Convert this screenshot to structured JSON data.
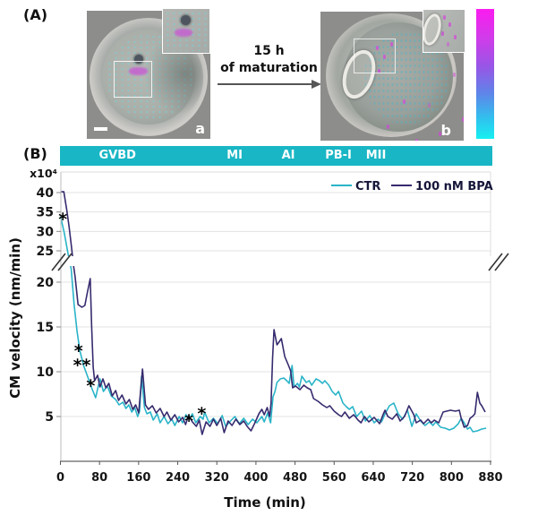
{
  "panel_a": {
    "label": "(A)",
    "photo_a_letter": "a",
    "photo_b_letter": "b",
    "arrow_line1": "15 h",
    "arrow_line2": "of maturation",
    "colorbar": {
      "top_color": "#fb1cf0",
      "bottom_color": "#16f0f1"
    }
  },
  "panel_b": {
    "label": "(B)",
    "phase_bar": {
      "color": "#19b6c5",
      "phases": [
        {
          "label": "GVBD",
          "left_pct": 13.3
        },
        {
          "label": "MI",
          "left_pct": 40.4
        },
        {
          "label": "AI",
          "left_pct": 52.8
        },
        {
          "label": "PB-I",
          "left_pct": 64.4
        },
        {
          "label": "MII",
          "left_pct": 73.1
        }
      ]
    },
    "y_scale_note": "x10⁴",
    "y_axis_title": "CM velocity (nm/min)",
    "x_axis_title": "Time (min)"
  },
  "chart_data": {
    "type": "line",
    "title": "",
    "xlabel": "Time (min)",
    "ylabel": "CM velocity (nm/min)",
    "y_units_multiplier": "x10⁴",
    "x_ticks": [
      0,
      80,
      160,
      240,
      320,
      400,
      480,
      560,
      640,
      720,
      800,
      880
    ],
    "y_ticks_upper": [
      25,
      30,
      35,
      40
    ],
    "y_ticks_lower": [
      5,
      10,
      15,
      20
    ],
    "y_axis_break_between": [
      22,
      24
    ],
    "grid": true,
    "legend_position": "top-right",
    "colors": {
      "grid": "#e3e3e3",
      "border": "#dcdcdc",
      "axis": "#8a8a8a",
      "tick_text": "#151515"
    },
    "series": [
      {
        "name": "CTR",
        "color": "#29b4c8",
        "points": [
          [
            0,
            34
          ],
          [
            8,
            29.5
          ],
          [
            16,
            24
          ],
          [
            22,
            21.5
          ],
          [
            28,
            17.5
          ],
          [
            34,
            14.5
          ],
          [
            40,
            12.3
          ],
          [
            48,
            10.6
          ],
          [
            56,
            9.4
          ],
          [
            64,
            8.2
          ],
          [
            72,
            7.1
          ],
          [
            81,
            9.2
          ],
          [
            88,
            7.8
          ],
          [
            96,
            8.4
          ],
          [
            104,
            7.3
          ],
          [
            113,
            6.9
          ],
          [
            120,
            6.3
          ],
          [
            128,
            6.6
          ],
          [
            134,
            5.9
          ],
          [
            140,
            6.3
          ],
          [
            146,
            5.5
          ],
          [
            152,
            6.0
          ],
          [
            158,
            5.0
          ],
          [
            162,
            5.6
          ],
          [
            166,
            9.5
          ],
          [
            172,
            6.0
          ],
          [
            177,
            5.3
          ],
          [
            184,
            5.5
          ],
          [
            190,
            4.6
          ],
          [
            198,
            5.3
          ],
          [
            204,
            4.3
          ],
          [
            212,
            5.0
          ],
          [
            220,
            4.2
          ],
          [
            228,
            4.7
          ],
          [
            234,
            4.0
          ],
          [
            243,
            5.0
          ],
          [
            250,
            4.3
          ],
          [
            257,
            5.2
          ],
          [
            263,
            4.7
          ],
          [
            270,
            5.3
          ],
          [
            277,
            4.3
          ],
          [
            286,
            5.0
          ],
          [
            292,
            4.7
          ],
          [
            295,
            5.5
          ],
          [
            304,
            4.3
          ],
          [
            313,
            4.8
          ],
          [
            322,
            4.2
          ],
          [
            331,
            5.1
          ],
          [
            338,
            3.9
          ],
          [
            348,
            4.5
          ],
          [
            357,
            5.0
          ],
          [
            366,
            4.2
          ],
          [
            375,
            4.8
          ],
          [
            384,
            4.1
          ],
          [
            393,
            4.7
          ],
          [
            402,
            4.3
          ],
          [
            412,
            5.0
          ],
          [
            417,
            4.4
          ],
          [
            424,
            5.4
          ],
          [
            430,
            4.3
          ],
          [
            435,
            7.2
          ],
          [
            439,
            7.8
          ],
          [
            443,
            8.8
          ],
          [
            450,
            9.2
          ],
          [
            457,
            9.3
          ],
          [
            463,
            9.0
          ],
          [
            468,
            8.7
          ],
          [
            474,
            10.7
          ],
          [
            478,
            8.3
          ],
          [
            485,
            8.7
          ],
          [
            489,
            8.3
          ],
          [
            494,
            9.5
          ],
          [
            503,
            8.8
          ],
          [
            509,
            9.0
          ],
          [
            514,
            8.5
          ],
          [
            523,
            9.2
          ],
          [
            530,
            9.0
          ],
          [
            536,
            8.7
          ],
          [
            541,
            9.0
          ],
          [
            549,
            8.5
          ],
          [
            556,
            7.8
          ],
          [
            563,
            7.4
          ],
          [
            569,
            7.8
          ],
          [
            578,
            6.5
          ],
          [
            585,
            6.1
          ],
          [
            591,
            5.8
          ],
          [
            598,
            6.1
          ],
          [
            606,
            5.0
          ],
          [
            616,
            5.6
          ],
          [
            624,
            4.5
          ],
          [
            633,
            5.1
          ],
          [
            642,
            4.3
          ],
          [
            650,
            4.7
          ],
          [
            657,
            4.4
          ],
          [
            664,
            5.3
          ],
          [
            673,
            6.2
          ],
          [
            682,
            6.5
          ],
          [
            691,
            5.3
          ],
          [
            700,
            4.7
          ],
          [
            710,
            5.7
          ],
          [
            719,
            3.9
          ],
          [
            728,
            5.3
          ],
          [
            737,
            4.5
          ],
          [
            746,
            4.0
          ],
          [
            755,
            4.4
          ],
          [
            762,
            4.0
          ],
          [
            768,
            4.4
          ],
          [
            778,
            3.8
          ],
          [
            787,
            3.7
          ],
          [
            796,
            3.5
          ],
          [
            805,
            3.7
          ],
          [
            814,
            4.2
          ],
          [
            820,
            4.8
          ],
          [
            826,
            4.3
          ],
          [
            833,
            3.6
          ],
          [
            838,
            3.8
          ],
          [
            844,
            3.3
          ],
          [
            853,
            3.4
          ],
          [
            862,
            3.6
          ],
          [
            871,
            3.7
          ]
        ]
      },
      {
        "name": "100 nM BPA",
        "color": "#372a6e",
        "points": [
          [
            0,
            40.2
          ],
          [
            7,
            40.2
          ],
          [
            13,
            35.5
          ],
          [
            18,
            31
          ],
          [
            23,
            25.5
          ],
          [
            27,
            21.8
          ],
          [
            30,
            20.6
          ],
          [
            36,
            17.5
          ],
          [
            44,
            17.2
          ],
          [
            50,
            17.4
          ],
          [
            55,
            18.8
          ],
          [
            61,
            20.4
          ],
          [
            64,
            15
          ],
          [
            67,
            10.5
          ],
          [
            70,
            9.0
          ],
          [
            76,
            9.6
          ],
          [
            81,
            8.3
          ],
          [
            87,
            9.2
          ],
          [
            93,
            8.2
          ],
          [
            99,
            8.7
          ],
          [
            106,
            7.3
          ],
          [
            113,
            7.9
          ],
          [
            119,
            6.8
          ],
          [
            126,
            7.4
          ],
          [
            134,
            6.4
          ],
          [
            141,
            6.9
          ],
          [
            148,
            5.8
          ],
          [
            154,
            6.3
          ],
          [
            160,
            5.4
          ],
          [
            168,
            10.3
          ],
          [
            174,
            6.3
          ],
          [
            180,
            5.8
          ],
          [
            188,
            6.2
          ],
          [
            196,
            5.4
          ],
          [
            204,
            5.9
          ],
          [
            212,
            5.0
          ],
          [
            218,
            5.5
          ],
          [
            226,
            4.6
          ],
          [
            234,
            5.2
          ],
          [
            242,
            4.4
          ],
          [
            250,
            4.9
          ],
          [
            256,
            4.1
          ],
          [
            262,
            5.1
          ],
          [
            270,
            4.4
          ],
          [
            278,
            3.9
          ],
          [
            284,
            4.6
          ],
          [
            290,
            3.0
          ],
          [
            298,
            4.4
          ],
          [
            306,
            3.9
          ],
          [
            313,
            4.7
          ],
          [
            320,
            4.0
          ],
          [
            328,
            4.8
          ],
          [
            335,
            3.2
          ],
          [
            343,
            4.5
          ],
          [
            351,
            4.0
          ],
          [
            359,
            4.7
          ],
          [
            367,
            4.1
          ],
          [
            375,
            4.5
          ],
          [
            382,
            3.9
          ],
          [
            390,
            3.4
          ],
          [
            398,
            4.3
          ],
          [
            406,
            5.3
          ],
          [
            412,
            5.8
          ],
          [
            417,
            5.2
          ],
          [
            423,
            6.0
          ],
          [
            428,
            5.0
          ],
          [
            431,
            6.5
          ],
          [
            434,
            11.5
          ],
          [
            437,
            14.7
          ],
          [
            443,
            13.0
          ],
          [
            447,
            13.3
          ],
          [
            452,
            13.7
          ],
          [
            459,
            11.7
          ],
          [
            466,
            10.8
          ],
          [
            471,
            10.1
          ],
          [
            475,
            8.2
          ],
          [
            481,
            8.4
          ],
          [
            490,
            8.0
          ],
          [
            498,
            8.5
          ],
          [
            505,
            8.2
          ],
          [
            512,
            8.0
          ],
          [
            518,
            7.0
          ],
          [
            527,
            6.7
          ],
          [
            536,
            6.3
          ],
          [
            545,
            6.0
          ],
          [
            551,
            6.2
          ],
          [
            560,
            5.6
          ],
          [
            569,
            5.2
          ],
          [
            575,
            5.0
          ],
          [
            582,
            5.5
          ],
          [
            591,
            4.8
          ],
          [
            600,
            5.2
          ],
          [
            609,
            4.6
          ],
          [
            615,
            4.3
          ],
          [
            622,
            5.0
          ],
          [
            631,
            4.4
          ],
          [
            642,
            4.9
          ],
          [
            653,
            4.2
          ],
          [
            660,
            5.2
          ],
          [
            664,
            5.7
          ],
          [
            670,
            5.0
          ],
          [
            679,
            4.7
          ],
          [
            688,
            5.3
          ],
          [
            695,
            4.5
          ],
          [
            704,
            5.0
          ],
          [
            713,
            6.2
          ],
          [
            723,
            5.2
          ],
          [
            728,
            4.3
          ],
          [
            737,
            4.6
          ],
          [
            743,
            4.2
          ],
          [
            752,
            4.7
          ],
          [
            759,
            4.3
          ],
          [
            765,
            4.6
          ],
          [
            774,
            4.3
          ],
          [
            783,
            5.5
          ],
          [
            790,
            5.6
          ],
          [
            798,
            5.7
          ],
          [
            808,
            5.6
          ],
          [
            816,
            5.7
          ],
          [
            820,
            4.8
          ],
          [
            826,
            3.8
          ],
          [
            833,
            4.0
          ],
          [
            838,
            4.8
          ],
          [
            843,
            5.0
          ],
          [
            848,
            5.3
          ],
          [
            853,
            7.7
          ],
          [
            858,
            6.5
          ],
          [
            862,
            6.2
          ],
          [
            869,
            5.5
          ]
        ]
      }
    ],
    "annotations": [
      {
        "t": 5,
        "v": 34.0,
        "text": "*"
      },
      {
        "t": 37,
        "v": 12.7,
        "text": "*"
      },
      {
        "t": 44,
        "v": 11.1,
        "text": "**"
      },
      {
        "t": 62,
        "v": 8.8,
        "text": "*"
      },
      {
        "t": 263,
        "v": 4.9,
        "text": "*"
      },
      {
        "t": 289,
        "v": 5.7,
        "text": "*"
      }
    ]
  }
}
